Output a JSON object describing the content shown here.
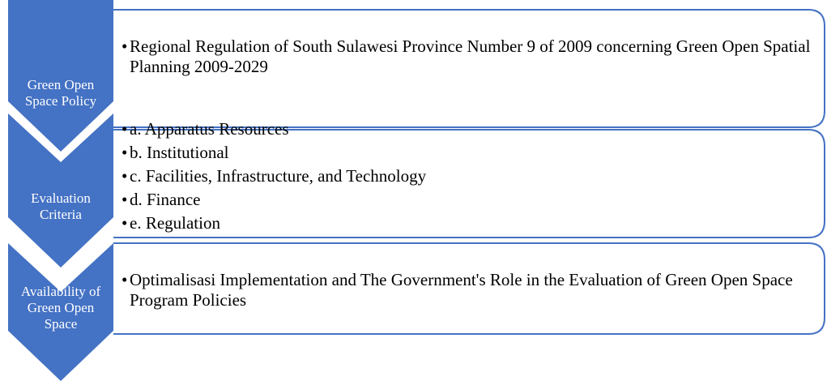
{
  "items": [
    {
      "label": "Green Open Space Policy",
      "bullets": [
        "Regional Regulation of South Sulawesi Province Number 9 of 2009 concerning Green Open Spatial Planning 2009-2029"
      ]
    },
    {
      "label": "Evaluation Criteria",
      "bullets": [
        "a. Apparatus Resources",
        "b. Institutional",
        "c. Facilities, Infrastructure, and Technology",
        "d. Finance",
        "e. Regulation"
      ]
    },
    {
      "label": "Availability of Green Open Space",
      "bullets": [
        "Optimalisasi Implementation and The Government's Role in the Evaluation of Green Open Space Program Policies"
      ]
    }
  ]
}
